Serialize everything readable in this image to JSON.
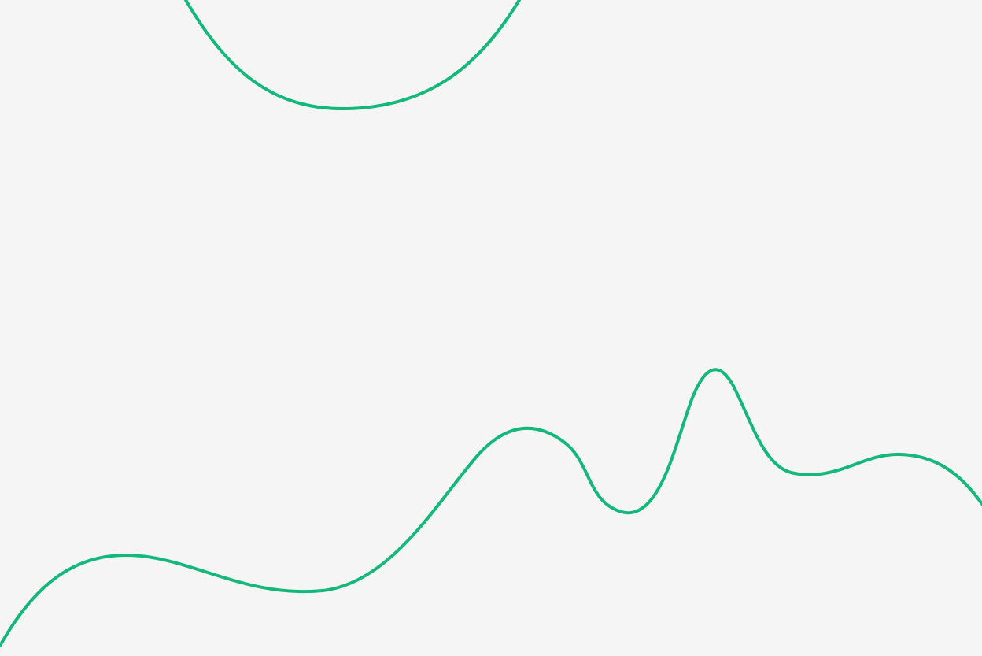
{
  "colors": {
    "background": "#f5f5f5",
    "stroke": "#14b87a"
  }
}
